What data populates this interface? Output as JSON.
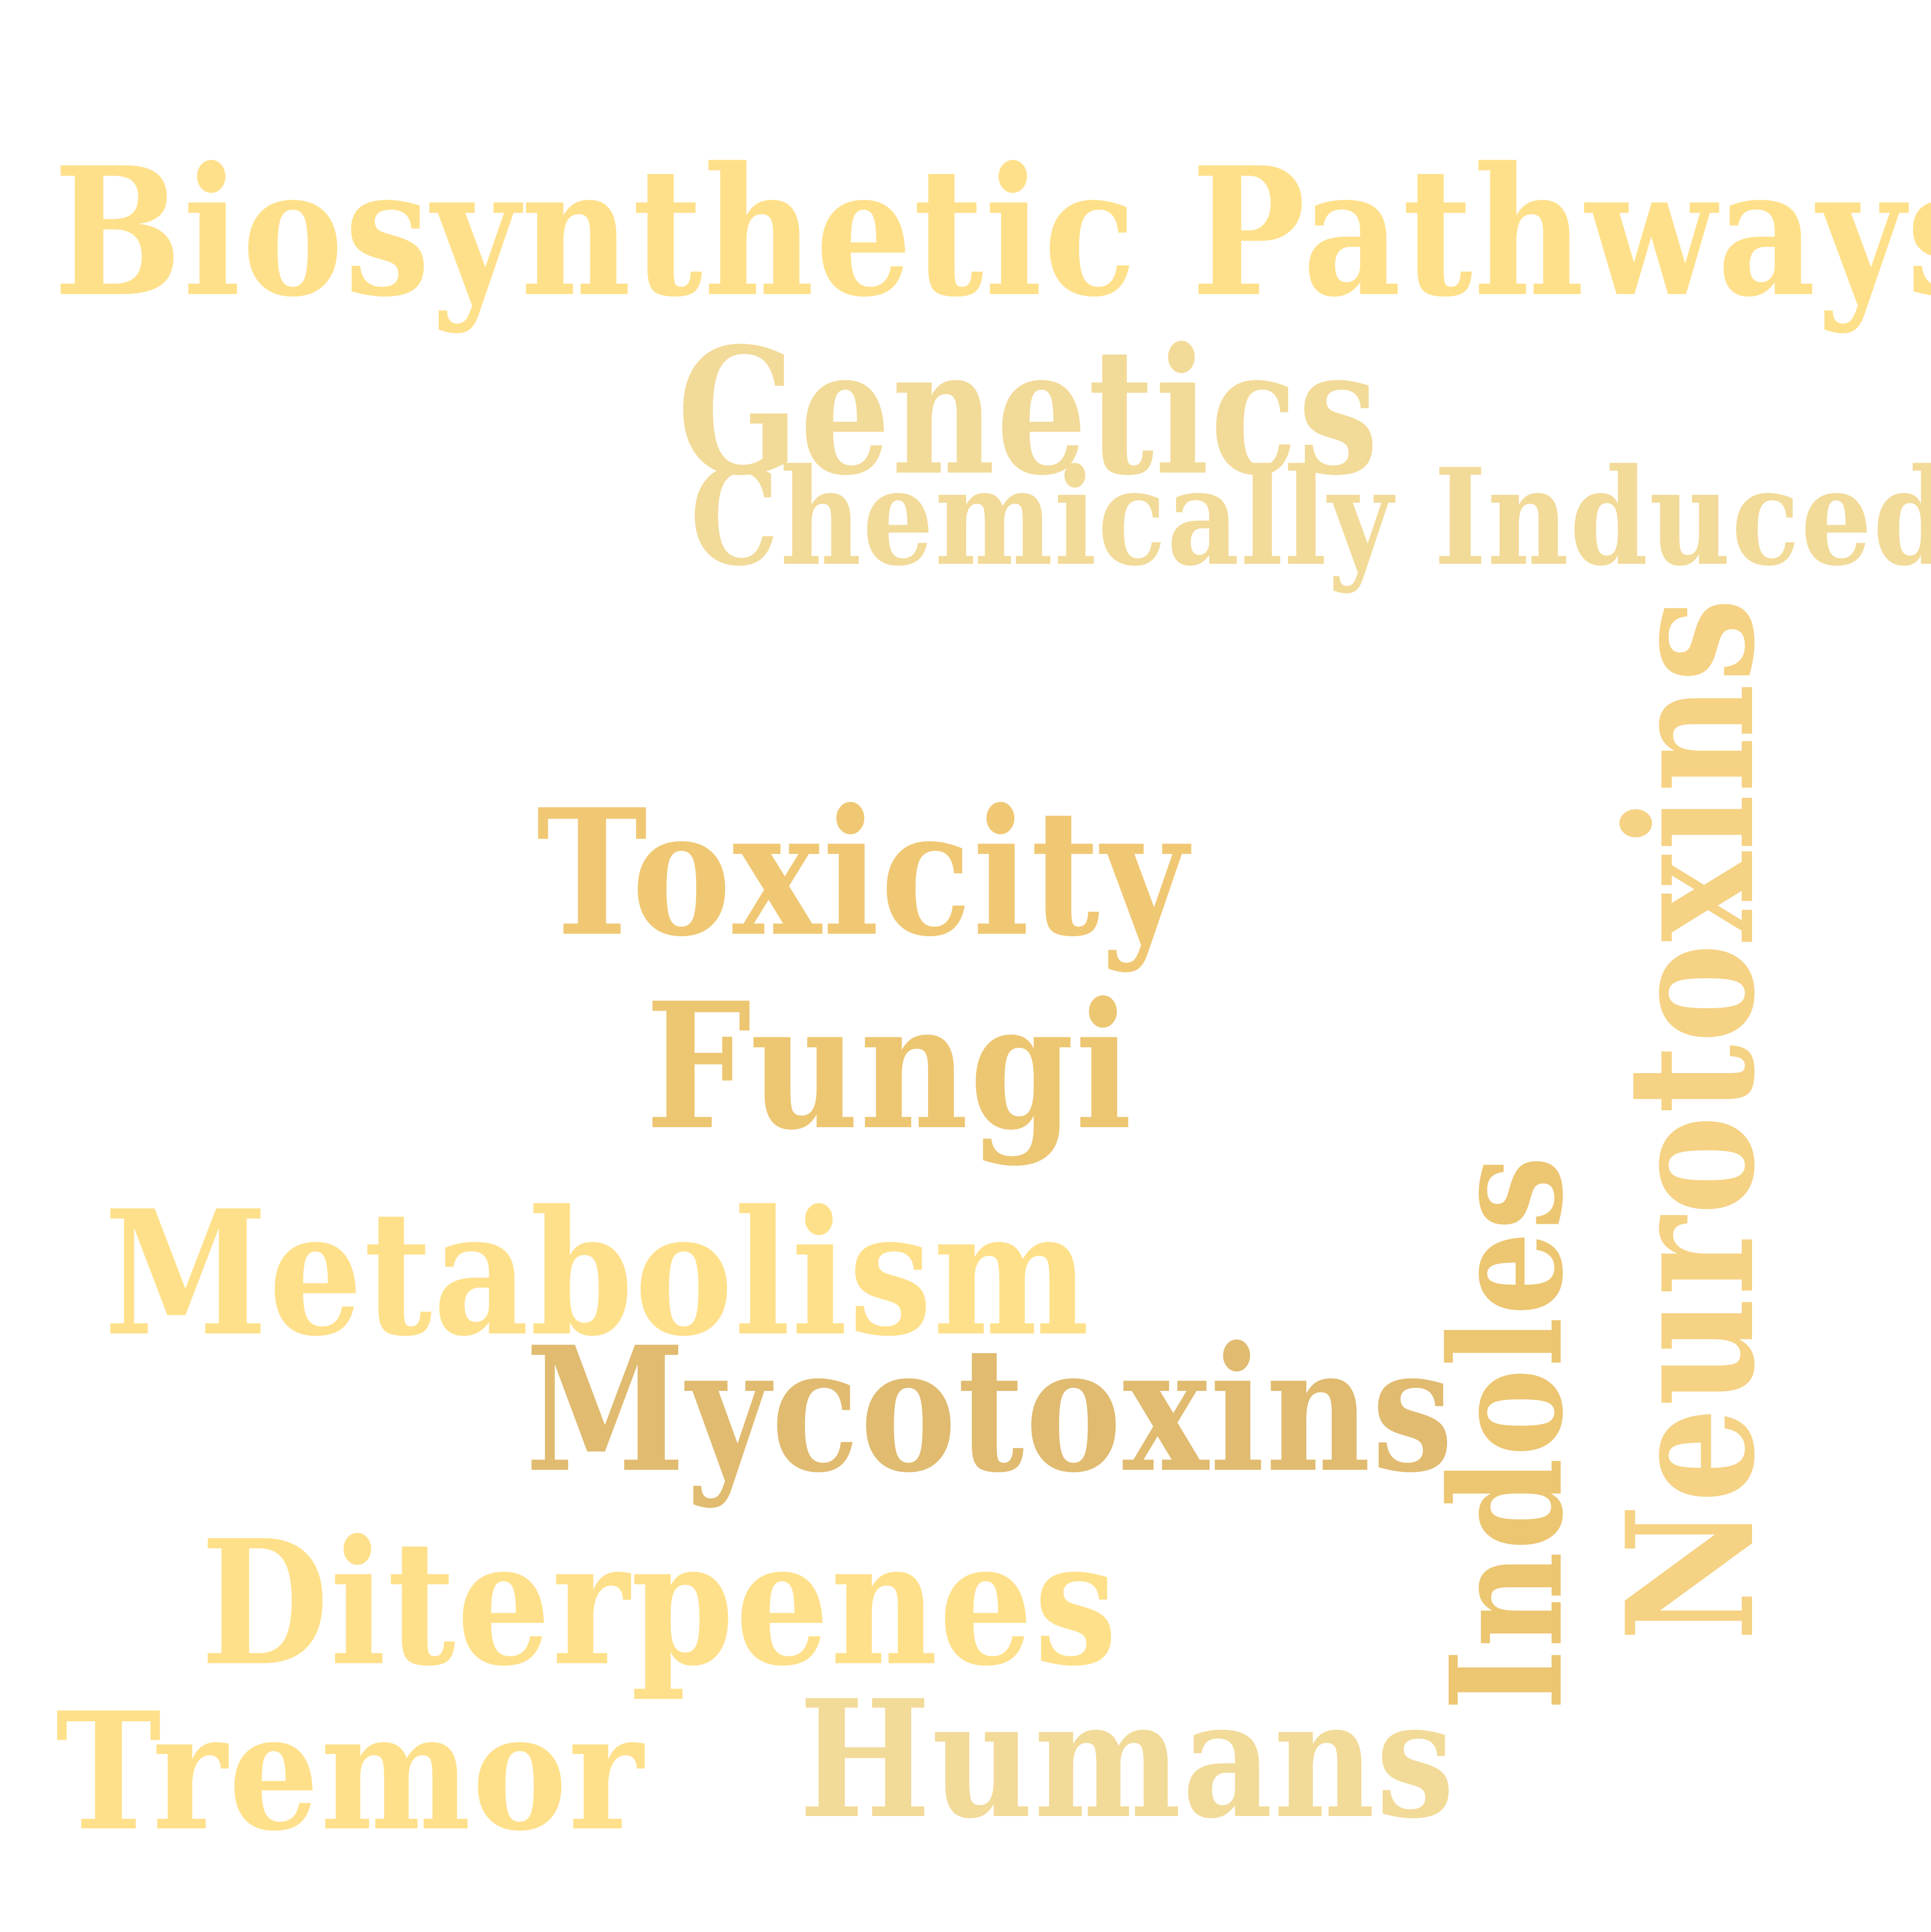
{
  "words": {
    "biosynthetic": "Biosynthetic Pathways",
    "genetics": "Genetics",
    "chemically": "Chemically Induced",
    "toxicity": "Toxicity",
    "fungi": "Fungi",
    "metabolism": "Metabolism",
    "mycotoxins": "Mycotoxins",
    "diterpenes": "Diterpenes",
    "tremor": "Tremor",
    "humans": "Humans",
    "indoles": "Indoles",
    "neurotoxins": "Neurotoxins"
  },
  "colors": {
    "light_yellow": "#FFE08A",
    "pale_gold": "#F2DA98",
    "gold": "#F0C874",
    "deep_gold": "#E0BB70"
  }
}
